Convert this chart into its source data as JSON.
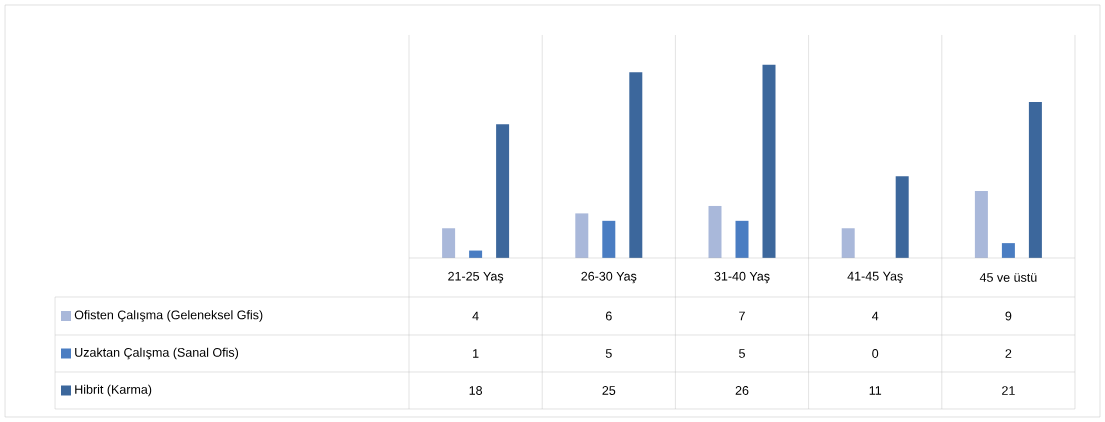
{
  "chart_data": {
    "type": "bar",
    "categories": [
      "21-25 Yaş",
      "26-30 Yaş",
      "31-40 Yaş",
      "41-45 Yaş",
      "45 ve üstü"
    ],
    "series": [
      {
        "name": "Ofisten Çalışma (Geleneksel Gfis)",
        "color": "#a9b8da",
        "values": [
          4,
          6,
          7,
          4,
          9
        ]
      },
      {
        "name": "Uzaktan Çalışma (Sanal Ofis)",
        "color": "#4a7dc2",
        "values": [
          1,
          5,
          5,
          0,
          2
        ]
      },
      {
        "name": "Hibrit (Karma)",
        "color": "#3c679c",
        "values": [
          18,
          25,
          26,
          11,
          21
        ]
      }
    ],
    "ylim": [
      0,
      30
    ],
    "data_labels": true,
    "legend": "bottom",
    "grid": "x"
  }
}
